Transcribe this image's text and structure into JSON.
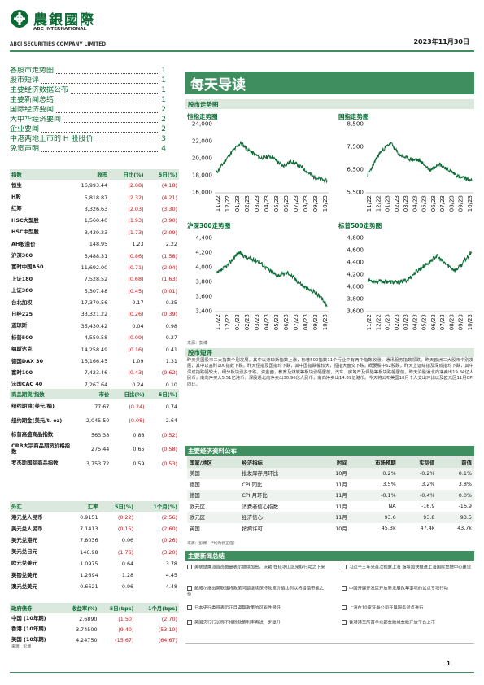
{
  "header": {
    "logo_cn": "農銀國際",
    "logo_en_1": "ABC INTERNATIONAL",
    "logo_en_2": "ABCI SECURITIES COMPANY LIMITED",
    "date": "2023年11月30日"
  },
  "toc": [
    {
      "label": "各股市走势图",
      "page": "1"
    },
    {
      "label": "股市短评",
      "page": "1"
    },
    {
      "label": "主要经济数据公布",
      "page": "1"
    },
    {
      "label": "主要新闻总结",
      "page": "1"
    },
    {
      "label": "国际经济要闻",
      "page": "2"
    },
    {
      "label": "大中华经济要闻",
      "page": "2"
    },
    {
      "label": "企业要闻",
      "page": "2"
    },
    {
      "label": "中港两地上市的 H 股股价",
      "page": "3"
    },
    {
      "label": "免责声明",
      "page": "4"
    }
  ],
  "title": "每天导读",
  "charts_section": "股市走势图",
  "charts": [
    {
      "title": "恒指走势图",
      "yticks": [
        "24,000",
        "22,000",
        "20,000",
        "18,000",
        "16,000"
      ]
    },
    {
      "title": "国指走势图",
      "yticks": [
        "8,500",
        "7,500",
        "6,500",
        "5,500"
      ]
    },
    {
      "title": "沪深300走势图",
      "yticks": [
        "4,400",
        "4,200",
        "4,000",
        "3,800",
        "3,600",
        "3,400"
      ]
    },
    {
      "title": "标普500走势图",
      "yticks": [
        "4,800",
        "4,600",
        "4,400",
        "4,200",
        "4,000",
        "3,800",
        "3,600"
      ]
    }
  ],
  "xticks": [
    "11/22",
    "12/22",
    "01/23",
    "02/23",
    "03/23",
    "04/23",
    "05/23",
    "06/23",
    "07/23",
    "08/23",
    "09/23",
    "10/23"
  ],
  "chart_source": "来源：彭博",
  "comment": {
    "title": "股市短评",
    "text": "昨天美国股市三大指数个别发展，其中以道琼斯指数上涨，标普500指数11个行业中有两个指数收涨，通讯服务指数领跌。昨天欧洲三大股市个别发展，其中以富时100指数下跌。昨天恒指及国指均下跌，其中国指跌幅较大，恒指大盘交下跌，概要股中62股跌，昨天上证综指及深成指均下跌，其中深成指跌幅较大，细分板块涨多于跌，资金面，教育及煤炭等板块涨幅居前，汽车、房地产及保险等板块跌幅居前。昨天沪股通北向净卖出19.84亿人民币，南向净买入5.51亿港币，深股通北向净卖出30.96亿人民币，南向净卖出14.69亿港币。今天将公布美国10月个人支出环比以及欧元区11月CPI同比。"
  },
  "index_table": {
    "headers": [
      "指数",
      "收市",
      "日比(%)",
      "5日(%)"
    ],
    "rows": [
      [
        "恒生",
        "16,993.44",
        "(2.08)",
        "(4.18)"
      ],
      [
        "H股",
        "5,818.87",
        "(2.32)",
        "(4.21)"
      ],
      [
        "红筹",
        "3,326.63",
        "(2.03)",
        "(3.30)"
      ],
      [
        "HSC大型股",
        "1,560.40",
        "(1.93)",
        "(3.90)"
      ],
      [
        "HSC中型股",
        "3,439.23",
        "(1.73)",
        "(2.09)"
      ],
      [
        "AH股溢价",
        "148.95",
        "1.23",
        "2.22"
      ],
      [
        "沪深300",
        "3,488.31",
        "(0.86)",
        "(1.58)"
      ],
      [
        "富时中国A50",
        "11,692.00",
        "(0.71)",
        "(2.04)"
      ],
      [
        "上证180",
        "7,528.52",
        "(0.68)",
        "(1.63)"
      ],
      [
        "上证380",
        "5,307.48",
        "(0.45)",
        "(0.01)"
      ],
      [
        "台北加权",
        "17,370.56",
        "0.17",
        "0.35"
      ],
      [
        "日经225",
        "33,321.22",
        "(0.26)",
        "(0.39)"
      ],
      [
        "道琼斯",
        "35,430.42",
        "0.04",
        "0.98"
      ],
      [
        "标普500",
        "4,550.58",
        "(0.09)",
        "0.27"
      ],
      [
        "纳斯达克",
        "14,258.49",
        "(0.16)",
        "0.41"
      ],
      [
        "德国DAX 30",
        "16,166.45",
        "1.09",
        "1.31"
      ],
      [
        "富时100",
        "7,423.46",
        "(0.43)",
        "(0.62)"
      ],
      [
        "法国CAC 40",
        "7,267.64",
        "0.24",
        "0.10"
      ]
    ]
  },
  "commodity_table": {
    "headers": [
      "商品期货/指数",
      "市价",
      "日比(%)",
      "5日(%)"
    ],
    "rows": [
      [
        "纽约期油(美元/桶)",
        "77.67",
        "(0.24)",
        "0.74"
      ],
      [
        "纽约期金(美元/t. oz)",
        "2,045.50",
        "(0.08)",
        "2.64"
      ],
      [
        "标普高盛商品指数",
        "563.38",
        "0.88",
        "(0.52)"
      ],
      [
        "CRB大宗商品期货价格指数",
        "275.44",
        "0.65",
        "(0.58)"
      ],
      [
        "罗杰斯国际商品指数",
        "3,753.72",
        "0.59",
        "(0.53)"
      ]
    ]
  },
  "fx_table": {
    "headers": [
      "外汇",
      "汇率",
      "5日(%)",
      "1个月(%)"
    ],
    "rows": [
      [
        "港元兑人民币",
        "0.9151",
        "(0.22)",
        "(2.56)"
      ],
      [
        "美元兑人民币",
        "7.1413",
        "(0.15)",
        "(2.60)"
      ],
      [
        "美元兑港元",
        "7.8036",
        "0.06",
        "(0.26)"
      ],
      [
        "美元兑日元",
        "146.98",
        "(1.76)",
        "(3.20)"
      ],
      [
        "欧元兑美元",
        "1.0975",
        "0.64",
        "3.78"
      ],
      [
        "英镑兑美元",
        "1.2694",
        "1.28",
        "4.45"
      ],
      [
        "澳元兑美元",
        "0.6621",
        "0.96",
        "4.48"
      ]
    ]
  },
  "bond_table": {
    "headers": [
      "政府债券",
      "收益率(%)",
      "5日(bps)",
      "1个月(bps)"
    ],
    "rows": [
      [
        "中国 (10年期)",
        "2.6890",
        "(1.50)",
        "(2.70)"
      ],
      [
        "香港 (10年期)",
        "3.74500",
        "(9.40)",
        "(53.10)"
      ],
      [
        "美国 (10年期)",
        "4.24750",
        "(15.67)",
        "(64.67)"
      ]
    ]
  },
  "table_source": "来源：彭博",
  "econ": {
    "title": "主要经济资料公布",
    "headers": [
      "国家/地区",
      "经济指标",
      "时间",
      "市场预期",
      "实际值",
      "前值"
    ],
    "rows": [
      [
        "美国",
        "批发库存月环比",
        "10月",
        "0.2%",
        "-0.2%",
        "0.1%"
      ],
      [
        "德国",
        "CPI 同比",
        "11月",
        "3.5%",
        "3.2%",
        "3.8%"
      ],
      [
        "德国",
        "CPI 月环比",
        "11月",
        "-0.1%",
        "-0.4%",
        "0.0%"
      ],
      [
        "欧元区",
        "消费者信心指数",
        "11月",
        "NA",
        "-16.9",
        "-16.9"
      ],
      [
        "欧元区",
        "经济信心",
        "11月",
        "93.6",
        "93.8",
        "93.5"
      ],
      [
        "英国",
        "按揭许可",
        "10月",
        "45.3k",
        "47.4k",
        "43.7k"
      ]
    ],
    "source": "来源：彭博 （*均为修正值）"
  },
  "news": {
    "title": "主要新闻总结",
    "left": [
      "美联储鹰派官员鲍曼表示继续加息，沃勒·在较冰山区采取行动之下来",
      "鲍威尔指出美联储将政策问题继续保持政策价格比例以将增值带能之价",
      "日本央行委员表示正月调整政策的可能性很低",
      "英国央行行长称不排除政策利率再进一步提升"
    ],
    "right": [
      "习近平三年来首次视察上海 指导加快推进上海国际金融中心建设",
      "中国开展开发区开放新发展改革事项的试点专项行动",
      "上海在10家证券公司开展服务试点进行",
      "香港港交所首单北部金融城金融开放平台上市"
    ]
  },
  "page_number": "1"
}
